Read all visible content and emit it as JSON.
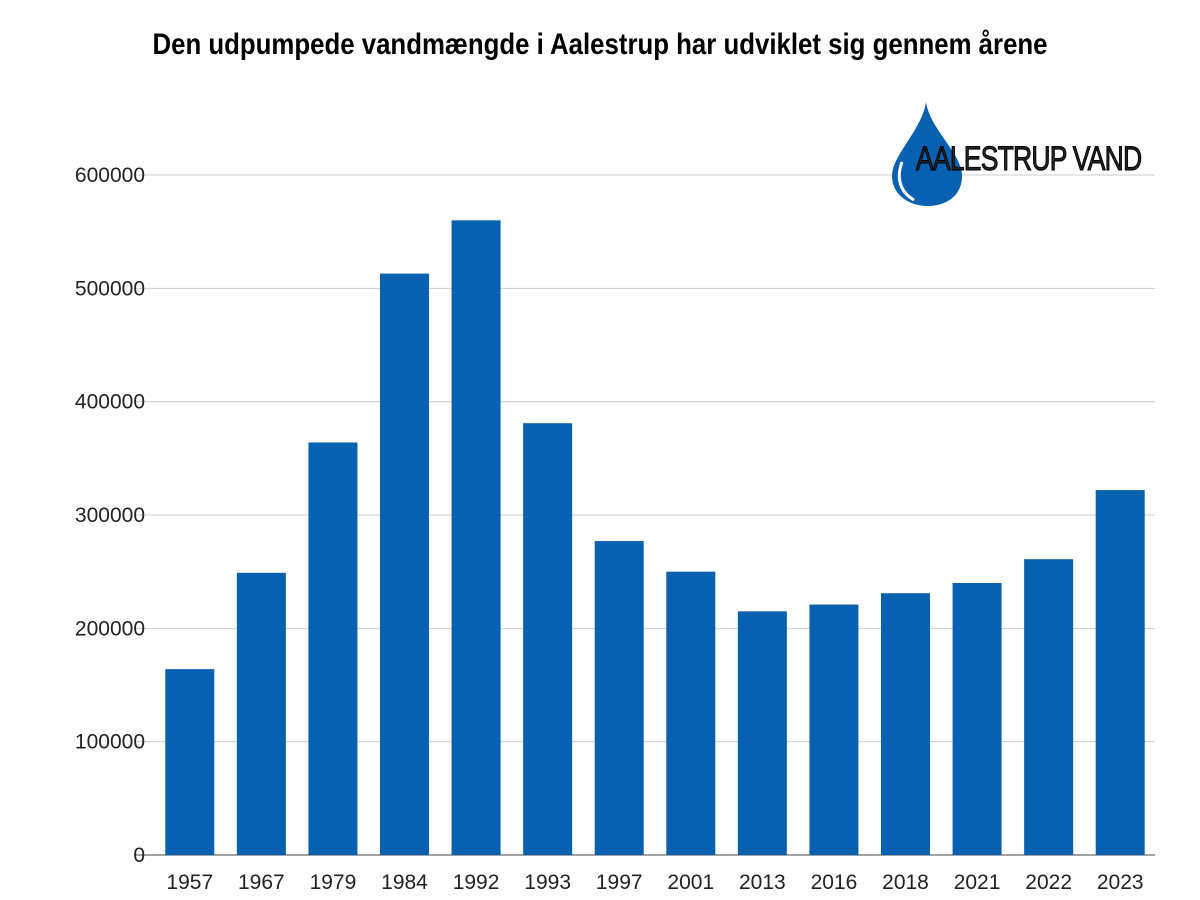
{
  "chart_data": {
    "type": "bar",
    "title": "Den udpumpede vandmængde i Aalestrup har udviklet sig gennem årene",
    "xlabel": "",
    "ylabel": "",
    "categories": [
      "1957",
      "1967",
      "1979",
      "1984",
      "1992",
      "1993",
      "1997",
      "2001",
      "2013",
      "2016",
      "2018",
      "2021",
      "2022",
      "2023"
    ],
    "values": [
      164000,
      249000,
      364000,
      513000,
      560000,
      381000,
      277000,
      250000,
      215000,
      221000,
      231000,
      240000,
      261000,
      322000
    ],
    "ylim": [
      0,
      600000
    ],
    "yticks": [
      "0",
      "100000",
      "200000",
      "300000",
      "400000",
      "500000",
      "600000"
    ],
    "grid": true,
    "bar_color": "#0860b0"
  },
  "logo": {
    "text": "AALESTRUP VAND",
    "color": "#0860b0"
  }
}
